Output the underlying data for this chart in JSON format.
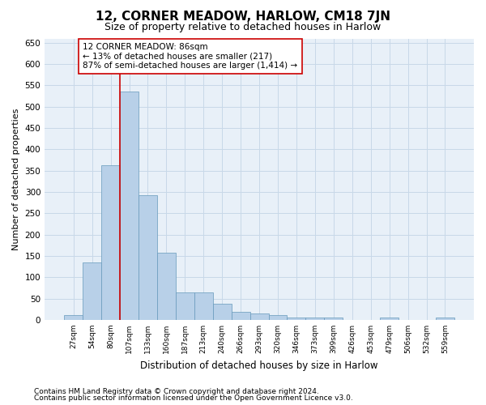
{
  "title": "12, CORNER MEADOW, HARLOW, CM18 7JN",
  "subtitle": "Size of property relative to detached houses in Harlow",
  "xlabel": "Distribution of detached houses by size in Harlow",
  "ylabel": "Number of detached properties",
  "categories": [
    "27sqm",
    "54sqm",
    "80sqm",
    "107sqm",
    "133sqm",
    "160sqm",
    "187sqm",
    "213sqm",
    "240sqm",
    "266sqm",
    "293sqm",
    "320sqm",
    "346sqm",
    "373sqm",
    "399sqm",
    "426sqm",
    "453sqm",
    "479sqm",
    "506sqm",
    "532sqm",
    "559sqm"
  ],
  "values": [
    11,
    135,
    362,
    535,
    293,
    157,
    65,
    65,
    38,
    18,
    16,
    11,
    5,
    5,
    5,
    0,
    0,
    5,
    0,
    0,
    5
  ],
  "bar_color": "#b8d0e8",
  "bar_edgecolor": "#6699bb",
  "vline_color": "#cc0000",
  "annotation_box_edgecolor": "#cc0000",
  "annotation_line1": "12 CORNER MEADOW: 86sqm",
  "annotation_line2": "← 13% of detached houses are smaller (217)",
  "annotation_line3": "87% of semi-detached houses are larger (1,414) →",
  "ylim": [
    0,
    660
  ],
  "yticks": [
    0,
    50,
    100,
    150,
    200,
    250,
    300,
    350,
    400,
    450,
    500,
    550,
    600,
    650
  ],
  "grid_color": "#c8d8e8",
  "background_color": "#e8f0f8",
  "footer_line1": "Contains HM Land Registry data © Crown copyright and database right 2024.",
  "footer_line2": "Contains public sector information licensed under the Open Government Licence v3.0.",
  "title_fontsize": 11,
  "subtitle_fontsize": 9,
  "annotation_fontsize": 7.5,
  "footer_fontsize": 6.5,
  "ylabel_fontsize": 8,
  "xlabel_fontsize": 8.5
}
